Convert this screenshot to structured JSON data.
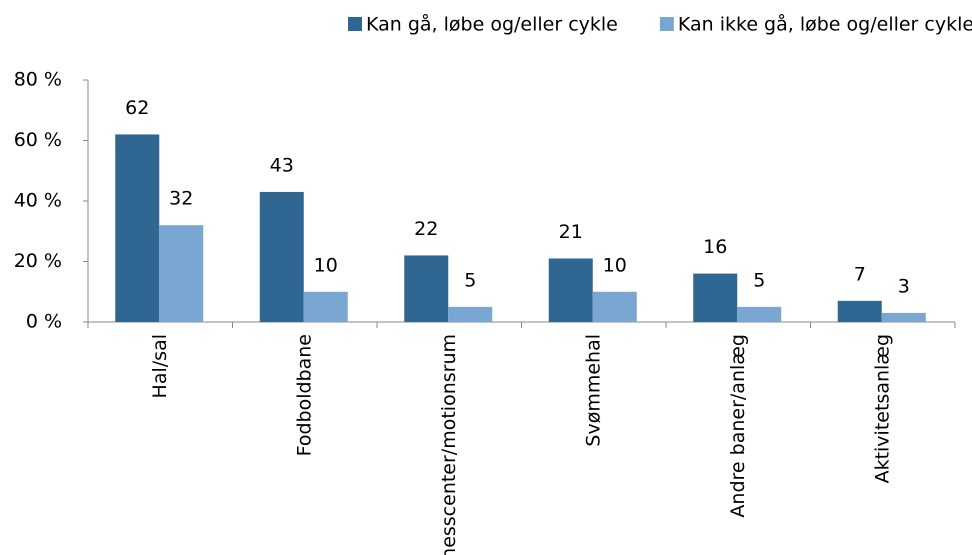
{
  "chart_data": {
    "type": "bar",
    "categories": [
      "Hal/sal",
      "Fodboldbane",
      "Fitnesscenter/motionsrum",
      "Svømmehal",
      "Andre baner/anlæg",
      "Aktivitetsanlæg"
    ],
    "series": [
      {
        "name": "Kan gå, løbe og/eller cykle",
        "color": "#2f6792",
        "values": [
          62,
          43,
          22,
          21,
          16,
          7
        ]
      },
      {
        "name": "Kan ikke gå, løbe og/eller cykle",
        "color": "#7aa7d1",
        "values": [
          32,
          10,
          5,
          10,
          5,
          3
        ]
      }
    ],
    "ylim": [
      0,
      80
    ],
    "yticks": [
      {
        "value": 0,
        "label": "0 %"
      },
      {
        "value": 20,
        "label": "20 %"
      },
      {
        "value": 40,
        "label": "40 %"
      },
      {
        "value": 60,
        "label": "60 %"
      },
      {
        "value": 80,
        "label": "80 %"
      }
    ],
    "legend": "top"
  }
}
